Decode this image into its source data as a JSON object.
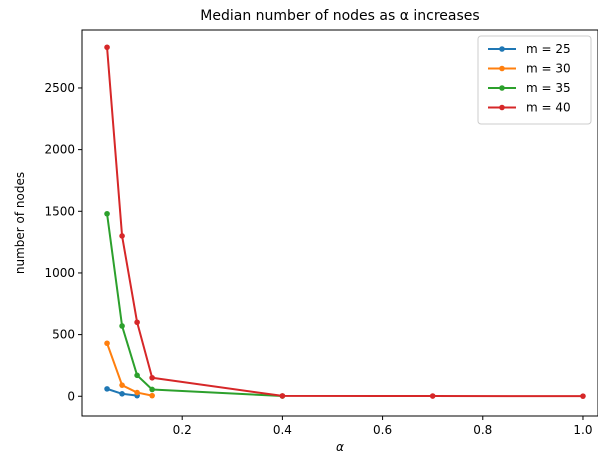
{
  "chart_data": {
    "type": "line",
    "title": "Median number of nodes as α increases",
    "xlabel": "α",
    "ylabel": "number of nodes",
    "xlim": [
      0.0,
      1.03
    ],
    "ylim": [
      -160,
      2970
    ],
    "xticks": [
      0.2,
      0.4,
      0.6,
      0.8,
      1.0
    ],
    "xtick_labels": [
      "0.2",
      "0.4",
      "0.6",
      "0.8",
      "1.0"
    ],
    "yticks": [
      0,
      500,
      1000,
      1500,
      2000,
      2500
    ],
    "ytick_labels": [
      "0",
      "500",
      "1000",
      "1500",
      "2000",
      "2500"
    ],
    "grid": false,
    "legend_position": "top-right",
    "series": [
      {
        "name": "m = 25",
        "color": "#1f77b4",
        "x": [
          0.05,
          0.08,
          0.11
        ],
        "y": [
          60,
          20,
          5
        ]
      },
      {
        "name": "m = 30",
        "color": "#ff7f0e",
        "x": [
          0.05,
          0.08,
          0.11,
          0.14
        ],
        "y": [
          430,
          90,
          30,
          5
        ]
      },
      {
        "name": "m = 35",
        "color": "#2ca02c",
        "x": [
          0.05,
          0.08,
          0.11,
          0.14,
          0.4
        ],
        "y": [
          1480,
          570,
          170,
          55,
          2
        ]
      },
      {
        "name": "m = 40",
        "color": "#d62728",
        "x": [
          0.05,
          0.08,
          0.11,
          0.14,
          0.4,
          0.7,
          1.0
        ],
        "y": [
          2830,
          1300,
          600,
          150,
          3,
          2,
          1
        ]
      }
    ]
  }
}
